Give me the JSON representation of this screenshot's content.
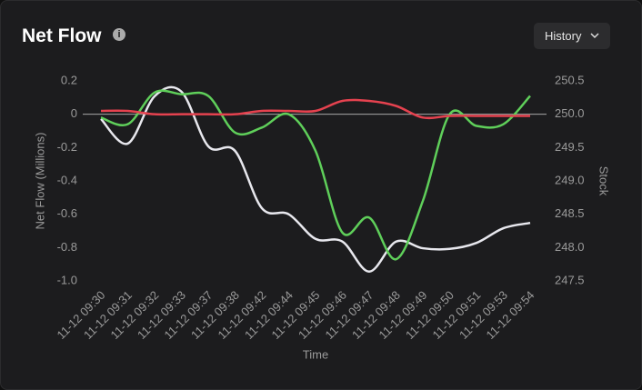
{
  "header": {
    "title": "Net Flow",
    "button": "History"
  },
  "chart_data": {
    "type": "line",
    "categories": [
      "11-12 09:30",
      "11-12 09:31",
      "11-12 09:32",
      "11-12 09:33",
      "11-12 09:37",
      "11-12 09:38",
      "11-12 09:42",
      "11-12 09:44",
      "11-12 09:45",
      "11-12 09:46",
      "11-12 09:47",
      "11-12 09:48",
      "11-12 09:49",
      "11-12 09:50",
      "11-12 09:51",
      "11-12 09:53",
      "11-12 09:54"
    ],
    "x_label": "Time",
    "y_label": "Net Flow (Millions)",
    "y2_label": "Stock",
    "ylim": [
      -1.0,
      0.2
    ],
    "yticks": [
      0.2,
      0,
      -0.2,
      -0.4,
      -0.6,
      -0.8,
      {
        "value": -1.0,
        "label": "-1.0"
      }
    ],
    "y2lim": [
      247.5,
      250.5
    ],
    "y2ticks": [
      250.5,
      {
        "value": 250.0,
        "label": "250.0"
      },
      249.5,
      {
        "value": 249.0,
        "label": "249.0"
      },
      248.5,
      {
        "value": 248.0,
        "label": "248.0"
      },
      247.5
    ],
    "series": [
      {
        "color": "#e8e8ee",
        "axis": "y2",
        "values": [
          249.93,
          249.56,
          250.27,
          250.34,
          249.52,
          249.45,
          248.59,
          248.5,
          248.13,
          248.09,
          247.64,
          248.09,
          247.99,
          247.98,
          248.07,
          248.29,
          248.37
        ]
      },
      {
        "color": "#5fcf5a",
        "axis": "y",
        "values": [
          -0.02,
          -0.06,
          0.13,
          0.12,
          0.11,
          -0.11,
          -0.08,
          0.0,
          -0.22,
          -0.71,
          -0.62,
          -0.87,
          -0.52,
          0.0,
          -0.07,
          -0.06,
          0.11
        ]
      },
      {
        "color": "#e5424f",
        "axis": "y",
        "values": [
          0.02,
          0.02,
          0,
          0,
          0,
          0,
          0.02,
          0.02,
          0.02,
          0.08,
          0.08,
          0.05,
          -0.02,
          -0.01,
          -0.01,
          -0.01,
          -0.01
        ]
      }
    ]
  }
}
